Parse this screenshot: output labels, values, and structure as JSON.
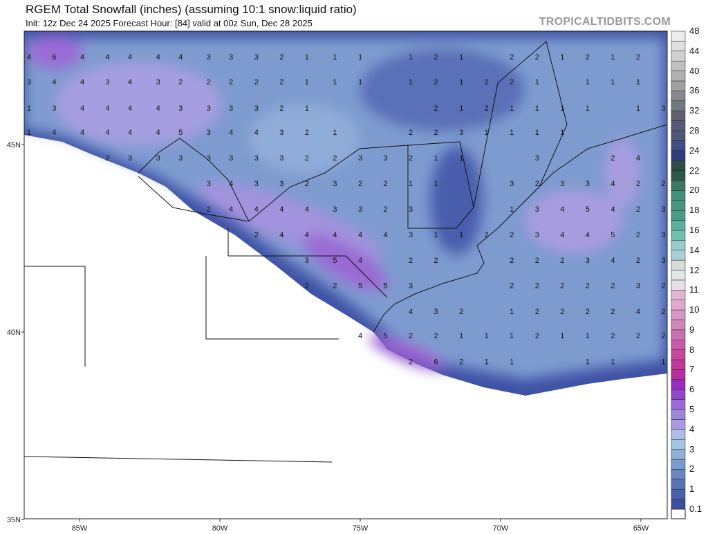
{
  "header": {
    "title": "RGEM Total Snowfall (inches) (assuming 10:1 snow:liquid ratio)",
    "subtitle": "Init: 12z Dec 24 2025   Forecast Hour: [84]   valid at 00z Sun, Dec 28 2025",
    "brand": "TROPICALTIDBITS.COM"
  },
  "axes": {
    "lat_labels": [
      {
        "lat": 45,
        "label": "45N"
      },
      {
        "lat": 40,
        "label": "40N"
      },
      {
        "lat": 35,
        "label": "35N"
      }
    ],
    "lon_labels": [
      {
        "lon": -85,
        "label": "85W"
      },
      {
        "lon": -80,
        "label": "80W"
      },
      {
        "lon": -75,
        "label": "75W"
      },
      {
        "lon": -70,
        "label": "70W"
      },
      {
        "lon": -65,
        "label": "65W"
      }
    ]
  },
  "colorbar": {
    "labels": [
      "0.1",
      "1",
      "2",
      "3",
      "4",
      "5",
      "6",
      "7",
      "8",
      "9",
      "10",
      "11",
      "12",
      "14",
      "16",
      "18",
      "20",
      "22",
      "24",
      "28",
      "32",
      "36",
      "40",
      "44",
      "48"
    ],
    "colors": [
      "#3a4fa0",
      "#4a5fae",
      "#5a73b8",
      "#6a85c0",
      "#7b9bcc",
      "#8fb0d8",
      "#a3c4e2",
      "#b0bde6",
      "#a89ce0",
      "#9c88da",
      "#9c6ad6",
      "#9048c8",
      "#9a2cc0",
      "#b82ea0",
      "#c0389a",
      "#c8489e",
      "#c85aa8",
      "#c870b0",
      "#d088b8",
      "#d898c4",
      "#e0a8cc",
      "#e0b8d4",
      "#e8e0e8",
      "#e0e8e4",
      "#d8dcd8",
      "#a8d0d8",
      "#98cccc",
      "#70c0b0",
      "#60b0a0",
      "#4a9c88",
      "#4a9480",
      "#40907a",
      "#3a7860",
      "#2e5848",
      "#2e4c48",
      "#2e3c80",
      "#404e88",
      "#505878",
      "#585878",
      "#606070",
      "#707880",
      "#888890",
      "#a0a0a0",
      "#b0b0b0",
      "#c0c0c0",
      "#d0d0d0",
      "#e0e0e0",
      "#ececec"
    ]
  },
  "snow_labels": {
    "lons": [
      -86.8,
      -85.9,
      -84.9,
      -84.0,
      -83.2,
      -82.2,
      -81.4,
      -80.4,
      -79.6,
      -78.7,
      -77.8,
      -76.9,
      -75.9,
      -75.0,
      -74.1,
      -73.2,
      -72.3,
      -71.4,
      -70.5,
      -69.6,
      -68.7,
      -67.8,
      -66.9,
      -66.0,
      -65.1,
      -64.2
    ],
    "rows": [
      {
        "lat": 47.34,
        "values": [
          4,
          6,
          4,
          4,
          4,
          4,
          4,
          3,
          3,
          3,
          2,
          1,
          1,
          1,
          null,
          1,
          2,
          1,
          null,
          2,
          2,
          1,
          2,
          1,
          2,
          null
        ]
      },
      {
        "lat": 46.68,
        "values": [
          3,
          4,
          4,
          3,
          4,
          3,
          2,
          2,
          2,
          2,
          2,
          1,
          1,
          1,
          null,
          1,
          2,
          1,
          2,
          2,
          1,
          null,
          1,
          1,
          1,
          null
        ]
      },
      {
        "lat": 45.98,
        "values": [
          1,
          3,
          4,
          4,
          4,
          4,
          3,
          3,
          3,
          3,
          2,
          1,
          null,
          null,
          null,
          null,
          2,
          1,
          2,
          1,
          1,
          1,
          1,
          null,
          1,
          3
        ]
      },
      {
        "lat": 45.33,
        "values": [
          1,
          4,
          4,
          4,
          4,
          4,
          5,
          3,
          4,
          4,
          3,
          2,
          1,
          null,
          null,
          2,
          2,
          3,
          1,
          1,
          1,
          1,
          null,
          null,
          null,
          null
        ]
      },
      {
        "lat": 44.65,
        "values": [
          null,
          null,
          null,
          2,
          3,
          3,
          3,
          3,
          3,
          3,
          3,
          2,
          2,
          3,
          3,
          2,
          1,
          1,
          null,
          null,
          3,
          null,
          null,
          2,
          4,
          null
        ]
      },
      {
        "lat": 43.97,
        "values": [
          null,
          null,
          null,
          null,
          null,
          null,
          null,
          3,
          4,
          3,
          3,
          2,
          3,
          2,
          2,
          1,
          1,
          null,
          null,
          3,
          2,
          3,
          3,
          4,
          2,
          2
        ]
      },
      {
        "lat": 43.28,
        "values": [
          null,
          null,
          null,
          null,
          null,
          null,
          null,
          2,
          4,
          4,
          4,
          4,
          3,
          3,
          2,
          3,
          null,
          null,
          null,
          1,
          3,
          4,
          5,
          4,
          2,
          3
        ]
      },
      {
        "lat": 42.6,
        "values": [
          null,
          null,
          null,
          null,
          null,
          null,
          null,
          null,
          null,
          2,
          4,
          4,
          4,
          4,
          4,
          3,
          1,
          1,
          2,
          2,
          3,
          4,
          4,
          5,
          2,
          3
        ]
      },
      {
        "lat": 41.92,
        "values": [
          null,
          null,
          null,
          null,
          null,
          null,
          null,
          null,
          null,
          null,
          null,
          3,
          5,
          4,
          null,
          2,
          2,
          null,
          null,
          2,
          2,
          2,
          3,
          4,
          2,
          3
        ]
      },
      {
        "lat": 41.25,
        "values": [
          null,
          null,
          null,
          null,
          null,
          null,
          null,
          null,
          null,
          null,
          null,
          2,
          2,
          5,
          5,
          3,
          null,
          null,
          null,
          2,
          2,
          2,
          2,
          2,
          3,
          2
        ]
      },
      {
        "lat": 40.55,
        "values": [
          null,
          null,
          null,
          null,
          null,
          null,
          null,
          null,
          null,
          null,
          null,
          null,
          null,
          null,
          null,
          4,
          3,
          2,
          null,
          1,
          2,
          2,
          2,
          2,
          4,
          2
        ]
      },
      {
        "lat": 39.91,
        "values": [
          null,
          null,
          null,
          null,
          null,
          null,
          null,
          null,
          null,
          null,
          null,
          null,
          null,
          4,
          5,
          2,
          2,
          1,
          1,
          1,
          2,
          1,
          1,
          2,
          2,
          2
        ]
      },
      {
        "lat": 39.22,
        "values": [
          null,
          null,
          null,
          null,
          null,
          null,
          null,
          null,
          null,
          null,
          null,
          null,
          null,
          null,
          null,
          2,
          6,
          2,
          1,
          1,
          null,
          null,
          1,
          1,
          null,
          1
        ]
      }
    ]
  }
}
